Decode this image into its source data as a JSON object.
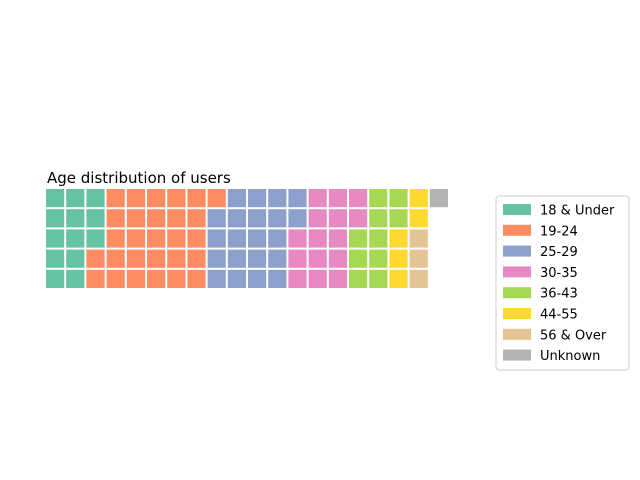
{
  "chart_data": {
    "type": "waffle",
    "title": "Age distribution of users",
    "rows": 5,
    "columns": 20,
    "fill_order": "column-major, top-to-bottom, left-to-right",
    "categories": [
      "18 & Under",
      "19-24",
      "25-29",
      "30-35",
      "36-43",
      "44-55",
      "56 & Over",
      "Unknown"
    ],
    "values": [
      13,
      28,
      21,
      15,
      10,
      5,
      3,
      1
    ],
    "colors": [
      "#66c2a5",
      "#fc8d62",
      "#8da0cb",
      "#e78ac3",
      "#a6d854",
      "#ffd92f",
      "#e5c494",
      "#b3b3b3"
    ],
    "legend_position": "right"
  }
}
